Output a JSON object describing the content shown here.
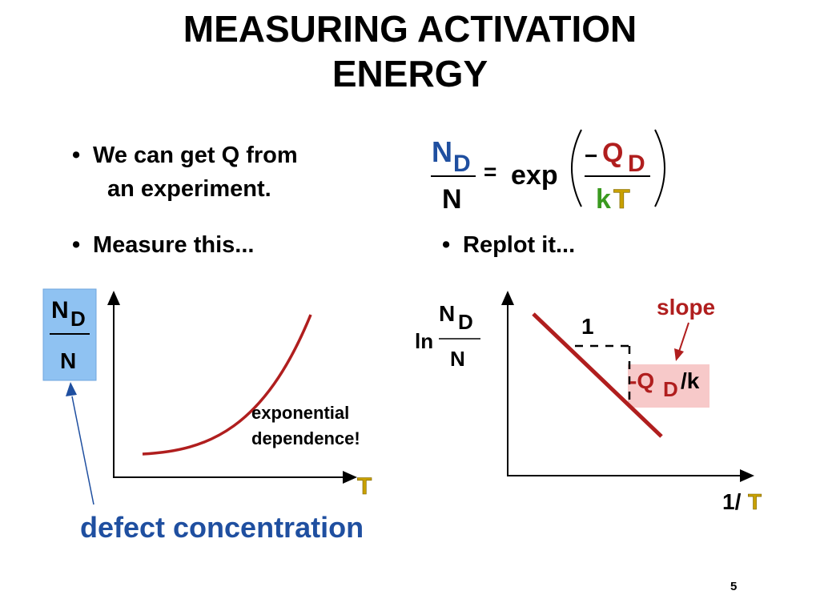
{
  "slide": {
    "title_line1": "MEASURING ACTIVATION",
    "title_line2": "ENERGY",
    "bullets": {
      "b1_line1": "We can get Q  from",
      "b1_line2": "an experiment.",
      "b2": "Measure this...",
      "b3": "Replot it..."
    },
    "bullet_glyph": "•",
    "equation": {
      "num_N": "N",
      "num_D": "D",
      "den_N": "N",
      "equals": "=",
      "exp": "exp",
      "minus": "−",
      "Q": "Q",
      "Q_sub": "D",
      "k": "k",
      "T": "T"
    },
    "left_graph": {
      "ylabel_N": "N",
      "ylabel_D": "D",
      "ylabel_den": "N",
      "xlabel": "T",
      "annotation_line1": "exponential",
      "annotation_line2": "dependence!",
      "caption": "defect concentration"
    },
    "right_graph": {
      "ylabel_ln": "ln",
      "ylabel_N": "N",
      "ylabel_D": "D",
      "ylabel_den": "N",
      "xlabel_prefix": "1/",
      "xlabel_T": "T",
      "run_label": "1",
      "slope_label": "slope",
      "rise_minus": "-Q",
      "rise_sub": "D",
      "rise_tail": "/k"
    },
    "page_number": "5",
    "colors": {
      "blue": "#1f4fa0",
      "red": "#b01e1e",
      "green": "#3a9a1f",
      "gold": "#c8a000",
      "highlight_blue": "#8fc2f2",
      "highlight_pink": "#f7c9c9",
      "curve": "#b01e1e"
    }
  }
}
